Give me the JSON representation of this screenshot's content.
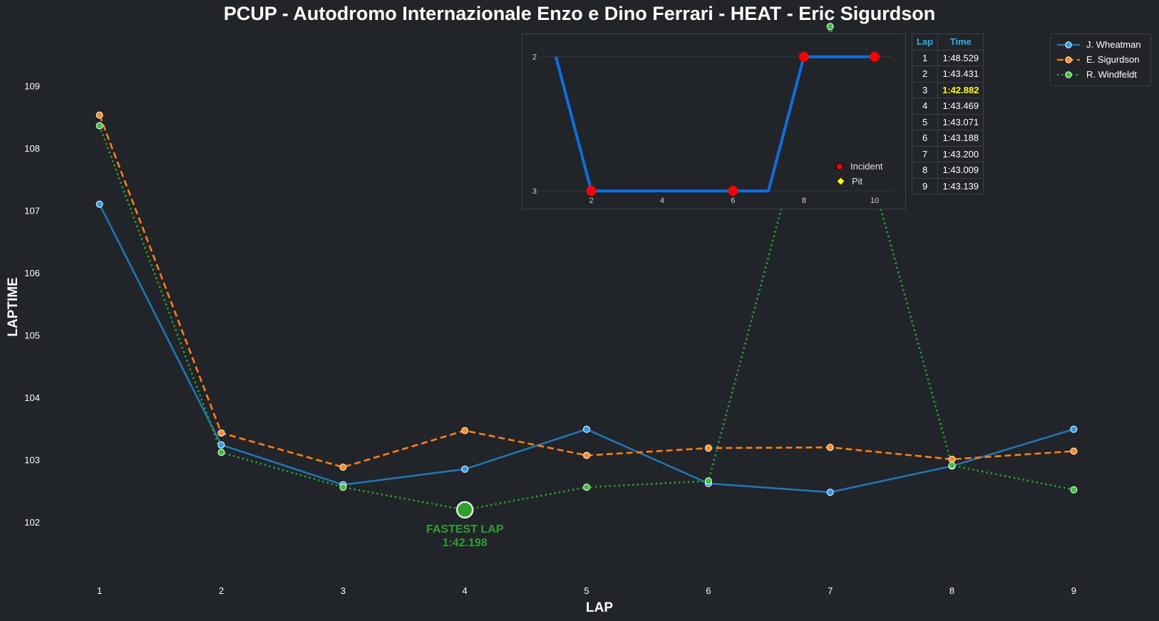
{
  "chart_data": {
    "type": "line",
    "title": "PCUP - Autodromo Internazionale Enzo e Dino Ferrari - HEAT - Eric Sigurdson",
    "xlabel": "LAP",
    "ylabel": "LAPTIME",
    "x": [
      1,
      2,
      3,
      4,
      5,
      6,
      7,
      8,
      9
    ],
    "xlim": [
      0.3,
      9.7
    ],
    "ylim": [
      101.1,
      109.85
    ],
    "yticks": [
      102,
      103,
      104,
      105,
      106,
      107,
      108,
      109
    ],
    "grid": false,
    "legend_position": "top-right",
    "series": [
      {
        "name": "J. Wheatman",
        "color": "#1f77b4",
        "style": "solid",
        "values": [
          107.1,
          103.24,
          102.6,
          102.85,
          103.49,
          102.62,
          102.48,
          102.9,
          103.49
        ]
      },
      {
        "name": "E. Sigurdson",
        "color": "#ff7f0e",
        "style": "dashed",
        "values": [
          108.529,
          103.431,
          102.882,
          103.469,
          103.071,
          103.188,
          103.2,
          103.009,
          103.139
        ]
      },
      {
        "name": "R. Windfeldt",
        "color": "#2ca02c",
        "style": "dotted",
        "values": [
          108.36,
          103.12,
          102.56,
          102.198,
          102.56,
          102.66,
          109.95,
          102.91,
          102.52
        ]
      }
    ],
    "annotation": {
      "label": "FASTEST LAP",
      "value": "1:42.198",
      "x": 4,
      "y": 102.198,
      "color": "#2ca02c"
    },
    "inset": {
      "type": "line",
      "x": [
        1,
        2,
        3,
        4,
        5,
        6,
        7,
        8,
        9,
        10
      ],
      "values": [
        2,
        3,
        3,
        3,
        3,
        3,
        3,
        2,
        2,
        2
      ],
      "xticks": [
        2,
        4,
        6,
        8,
        10
      ],
      "yticks": [
        2,
        3
      ],
      "xlim": [
        0.5,
        10.5
      ],
      "ylim": [
        3.09,
        1.89
      ],
      "line_color": "#0a6fe0",
      "incidents": [
        2,
        6,
        8,
        10
      ],
      "incident_color": "#ff0000",
      "pit_color": "#ffff00",
      "legend": [
        "Incident",
        "Pit"
      ]
    },
    "table": {
      "headers": [
        "Lap",
        "Time"
      ],
      "rows": [
        [
          "1",
          "1:48.529"
        ],
        [
          "2",
          "1:43.431"
        ],
        [
          "3",
          "1:42.882"
        ],
        [
          "4",
          "1:43.469"
        ],
        [
          "5",
          "1:43.071"
        ],
        [
          "6",
          "1:43.188"
        ],
        [
          "7",
          "1:43.200"
        ],
        [
          "8",
          "1:43.009"
        ],
        [
          "9",
          "1:43.139"
        ]
      ],
      "best_row": 2,
      "best_color": "#ffff00",
      "header_color": "#22b3e3"
    }
  }
}
